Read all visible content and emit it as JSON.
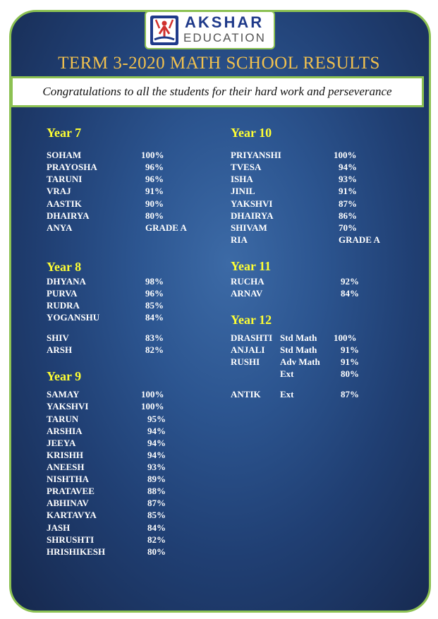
{
  "logo": {
    "line1": "AKSHAR",
    "line2": "EDUCATION"
  },
  "title": "TERM 3-2020 MATH SCHOOL RESULTS",
  "banner": "Congratulations to all the students for their hard work and perseverance",
  "colors": {
    "panel_bg": "#2c5590",
    "border": "#8cc152",
    "title": "#f2c14e",
    "heading": "#ffff33",
    "text": "#ffffff"
  },
  "sections": {
    "year7": {
      "heading": "Year 7",
      "rows": [
        {
          "name": "SOHAM",
          "score": "100%"
        },
        {
          "name": "PRAYOSHA",
          "score": "96%"
        },
        {
          "name": "TARUNI",
          "score": "96%"
        },
        {
          "name": "VRAJ",
          "score": "91%"
        },
        {
          "name": "AASTIK",
          "score": "90%"
        },
        {
          "name": "DHAIRYA",
          "score": "80%"
        },
        {
          "name": "ANYA",
          "score": "GRADE A"
        }
      ]
    },
    "year8": {
      "heading": "Year 8",
      "rows": [
        {
          "name": "DHYANA",
          "score": "98%"
        },
        {
          "name": "PURVA",
          "score": "96%"
        },
        {
          "name": "RUDRA",
          "score": "85%"
        },
        {
          "name": "YOGANSHU",
          "score": "84%"
        },
        {
          "name": "SHIV",
          "score": "83%"
        },
        {
          "name": "ARSH",
          "score": "82%"
        }
      ]
    },
    "year9": {
      "heading": "Year 9",
      "rows": [
        {
          "name": "SAMAY",
          "score": "100%"
        },
        {
          "name": "YAKSHVI",
          "score": "100%"
        },
        {
          "name": "TARUN",
          "score": "95%"
        },
        {
          "name": "ARSHIA",
          "score": "94%"
        },
        {
          "name": "JEEYA",
          "score": "94%"
        },
        {
          "name": "KRISHH",
          "score": "94%"
        },
        {
          "name": "ANEESH",
          "score": "93%"
        },
        {
          "name": "NISHTHA",
          "score": "89%"
        },
        {
          "name": "PRATAVEE",
          "score": "88%"
        },
        {
          "name": "ABHINAV",
          "score": "87%"
        },
        {
          "name": "KARTAVYA",
          "score": "85%"
        },
        {
          "name": "JASH",
          "score": "84%"
        },
        {
          "name": "SHRUSHTI",
          "score": "82%"
        },
        {
          "name": "HRISHIKESH",
          "score": "80%"
        }
      ]
    },
    "year10": {
      "heading": "Year 10",
      "rows": [
        {
          "name": "PRIYANSHI",
          "score": "100%"
        },
        {
          "name": "TVESA",
          "score": "94%"
        },
        {
          "name": "ISHA",
          "score": "93%"
        },
        {
          "name": "JINIL",
          "score": "91%"
        },
        {
          "name": "YAKSHVI",
          "score": "87%"
        },
        {
          "name": "DHAIRYA",
          "score": "86%"
        },
        {
          "name": "SHIVAM",
          "score": "70%"
        },
        {
          "name": "RIA",
          "score": "GRADE A"
        }
      ]
    },
    "year11": {
      "heading": "Year 11",
      "rows": [
        {
          "name": "RUCHA",
          "score": "92%"
        },
        {
          "name": "ARNAV",
          "score": "84%"
        }
      ]
    },
    "year12": {
      "heading": "Year 12",
      "rows": [
        {
          "name": "DRASHTI",
          "subject": "Std Math",
          "score": "100%"
        },
        {
          "name": "ANJALI",
          "subject": "Std Math",
          "score": "91%"
        },
        {
          "name": "RUSHI",
          "subject": "Adv Math",
          "score": "91%"
        },
        {
          "name": "",
          "subject": "Ext",
          "score": "80%"
        },
        {
          "name": "ANTIK",
          "subject": "Ext",
          "score": "87%"
        }
      ]
    }
  }
}
